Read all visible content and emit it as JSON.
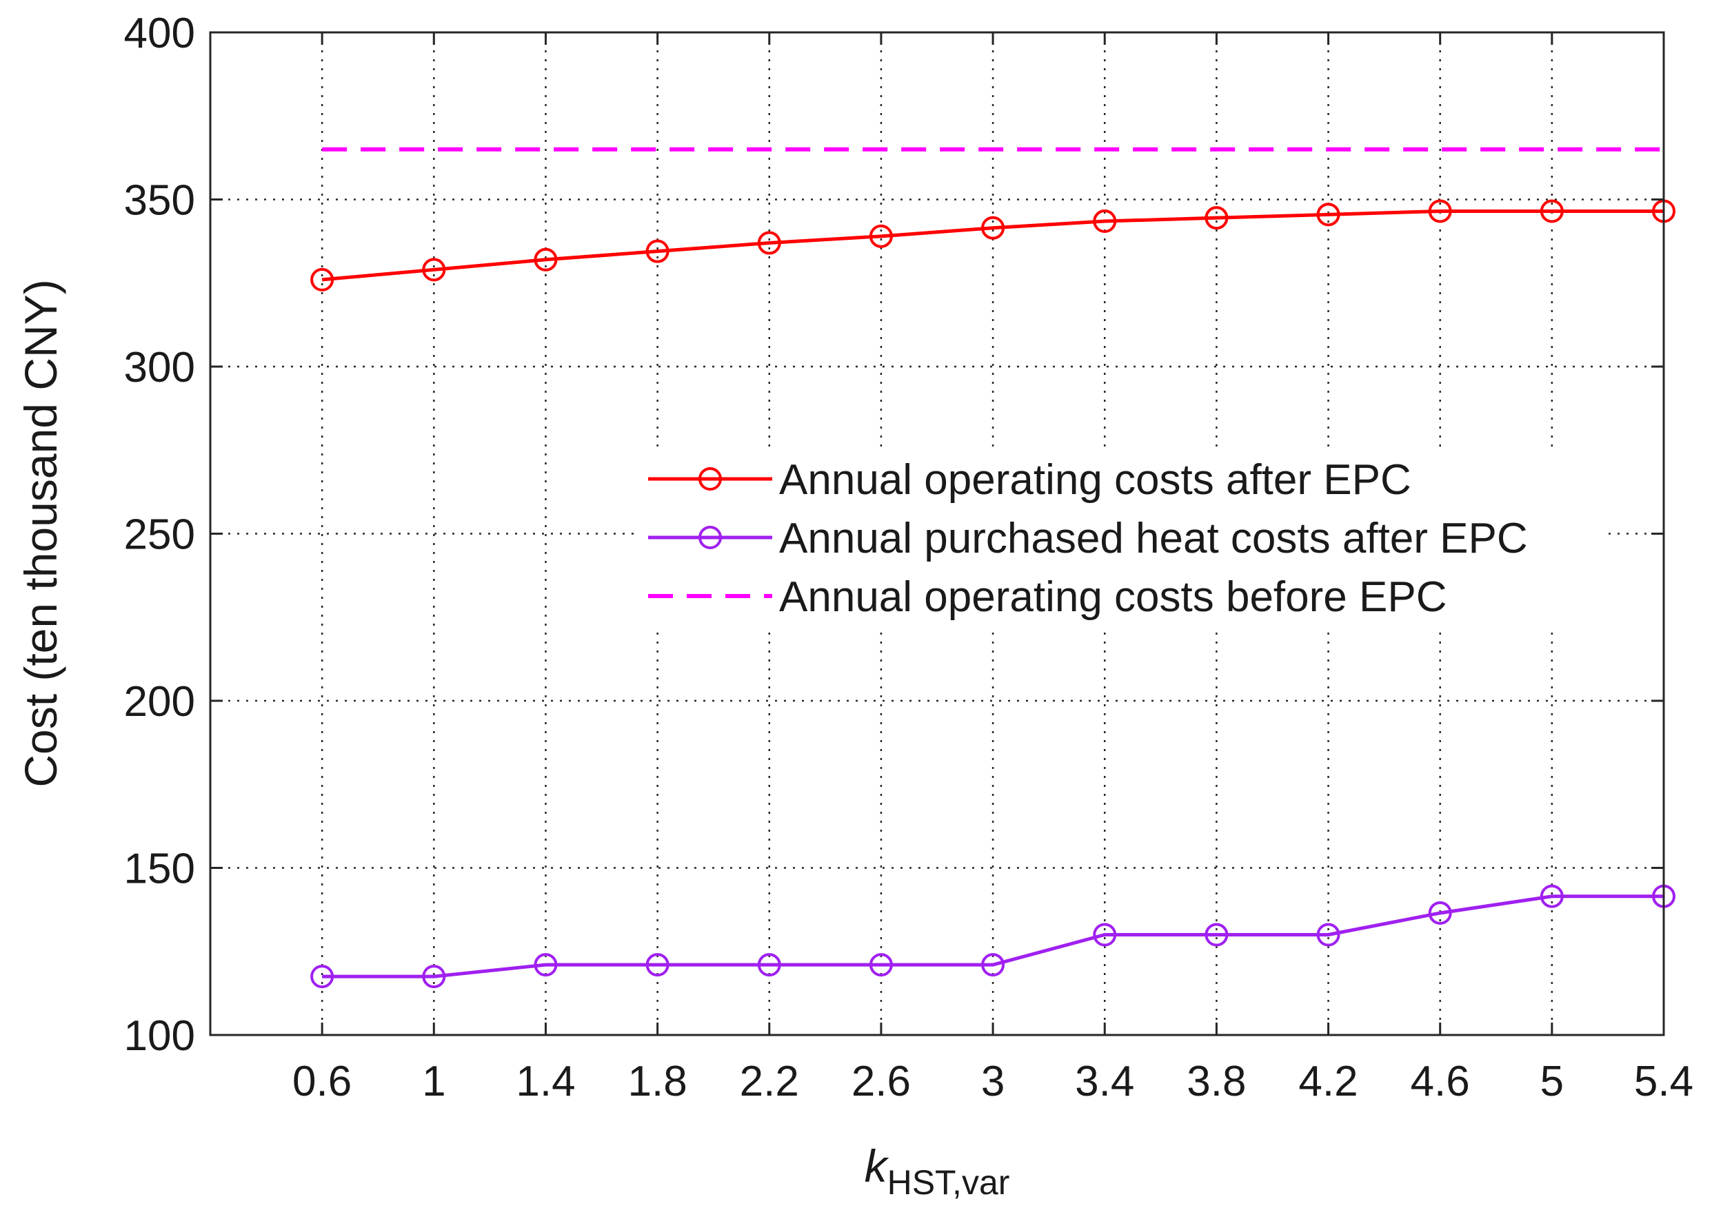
{
  "chart_data": {
    "type": "line",
    "title": "",
    "xlabel_main": "k",
    "xlabel_sub": "HST,var",
    "ylabel": "Cost (ten thousand CNY)",
    "x": [
      0.6,
      1,
      1.4,
      1.8,
      2.2,
      2.6,
      3,
      3.4,
      3.8,
      4.2,
      4.6,
      5,
      5.4
    ],
    "x_tick_labels": [
      "0.6",
      "1",
      "1.4",
      "1.8",
      "2.2",
      "2.6",
      "3",
      "3.4",
      "3.8",
      "4.2",
      "4.6",
      "5",
      "5.4"
    ],
    "xlim": [
      0.2,
      5.4
    ],
    "ylim": [
      100,
      400
    ],
    "y_ticks": [
      100,
      150,
      200,
      250,
      300,
      350,
      400
    ],
    "grid": true,
    "legend_position": "center-right",
    "series": [
      {
        "name": "Annual operating costs after EPC",
        "color": "#ff0000",
        "style": "solid",
        "marker": "circle",
        "values": [
          326,
          329,
          332,
          334.5,
          337,
          339,
          341.5,
          343.5,
          344.5,
          345.5,
          346.5,
          346.5,
          346.5
        ]
      },
      {
        "name": "Annual purchased heat costs after EPC",
        "color": "#a020f0",
        "style": "solid",
        "marker": "circle",
        "values": [
          117.5,
          117.5,
          121,
          121,
          121,
          121,
          121,
          130,
          130,
          130,
          136.5,
          141.5,
          141.5
        ]
      },
      {
        "name": "Annual operating costs before EPC",
        "color": "#ff00ff",
        "style": "dashed",
        "marker": "none",
        "values": [
          365,
          365,
          365,
          365,
          365,
          365,
          365,
          365,
          365,
          365,
          365,
          365,
          365
        ]
      }
    ]
  }
}
